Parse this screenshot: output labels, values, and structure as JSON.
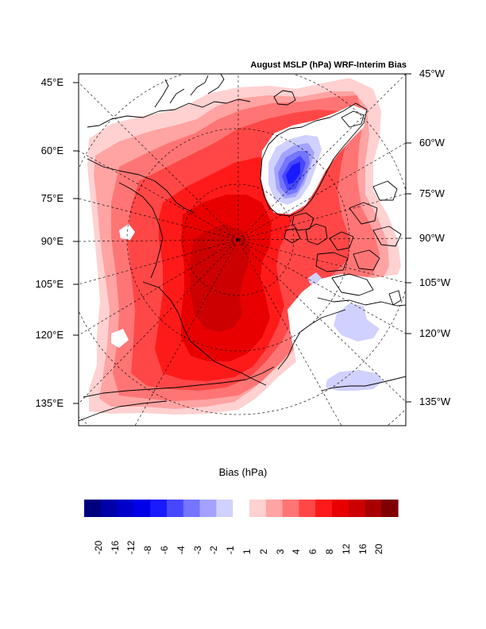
{
  "map": {
    "title": "August MSLP (hPa) WRF-Interim Bias",
    "left_labels": [
      "45°E",
      "60°E",
      "75°E",
      "90°E",
      "105°E",
      "120°E",
      "135°E"
    ],
    "right_labels": [
      "45°W",
      "60°W",
      "75°W",
      "90°W",
      "105°W",
      "120°W",
      "135°W"
    ],
    "colors": {
      "land_outline": "#000000",
      "graticule": "#000000",
      "frame": "#000000"
    }
  },
  "colorbar": {
    "title": "Bias (hPa)",
    "ticks": [
      "-20",
      "-16",
      "-12",
      "-8",
      "-6",
      "-4",
      "-3",
      "-2",
      "-1",
      "1",
      "2",
      "3",
      "4",
      "6",
      "8",
      "12",
      "16",
      "20"
    ],
    "negative_colors": [
      "#00007f",
      "#0000a8",
      "#0000cc",
      "#0000e8",
      "#1a1aff",
      "#4747ff",
      "#7575ff",
      "#a3a3ff",
      "#d1d1ff"
    ],
    "neutral_color": "#ffffff",
    "positive_colors": [
      "#ffd1d1",
      "#ffa3a3",
      "#ff7575",
      "#ff4747",
      "#ff1a1a",
      "#e80000",
      "#cc0000",
      "#a80000",
      "#7f0000"
    ]
  }
}
